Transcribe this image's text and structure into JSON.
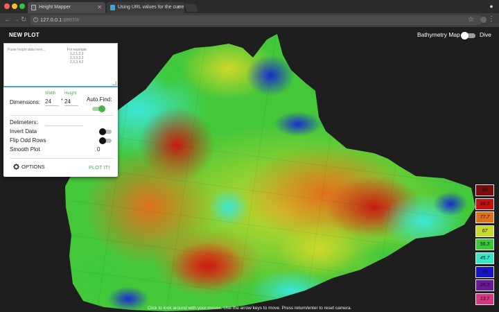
{
  "browser": {
    "tabs": [
      {
        "title": "Height Mapper"
      },
      {
        "title": "Using URL values for the curre"
      }
    ],
    "url_host": "127.0.0.1",
    "url_port": ":8887/#"
  },
  "app": {
    "new_plot_label": "NEW PLOT",
    "bathymetry_label": "Bathymetry Map",
    "dive_label": "Dive",
    "hint": "Click to look around with your mouse. Use the arrow keys to move. Press return/enter to reset camera."
  },
  "panel": {
    "placeholder": "Paste height data here...",
    "example_title": "For example:",
    "example_lines": [
      "1,2,1,2,3",
      "2,3,3,2,3",
      "2,3,3,4,2"
    ],
    "width_label": "Width",
    "height_label": "Height",
    "dimensions_label": "Dimensions:",
    "width_value": "24",
    "x_sep": "*",
    "height_value": "24",
    "auto_find_label": "Auto Find:",
    "auto_find_on": true,
    "delimeters_label": "Delimeters:",
    "invert_label": "Invert Data",
    "flip_label": "Flip Odd Rows",
    "smooth_label": "Smooth Plot",
    "smooth_value": "0",
    "options_label": "OPTIONS",
    "plot_label": "PLOT IT!"
  },
  "legend": [
    {
      "value": "89",
      "color": "#7b0c0c"
    },
    {
      "value": "88.3",
      "color": "#c41111"
    },
    {
      "value": "77.7",
      "color": "#e0701c"
    },
    {
      "value": "67",
      "color": "#c9d92a"
    },
    {
      "value": "56.3",
      "color": "#3bc83b"
    },
    {
      "value": "45.7",
      "color": "#38e6c2"
    },
    {
      "value": "35",
      "color": "#1515c8"
    },
    {
      "value": "26.3",
      "color": "#6a1895"
    },
    {
      "value": "13.7",
      "color": "#d6377f"
    }
  ]
}
